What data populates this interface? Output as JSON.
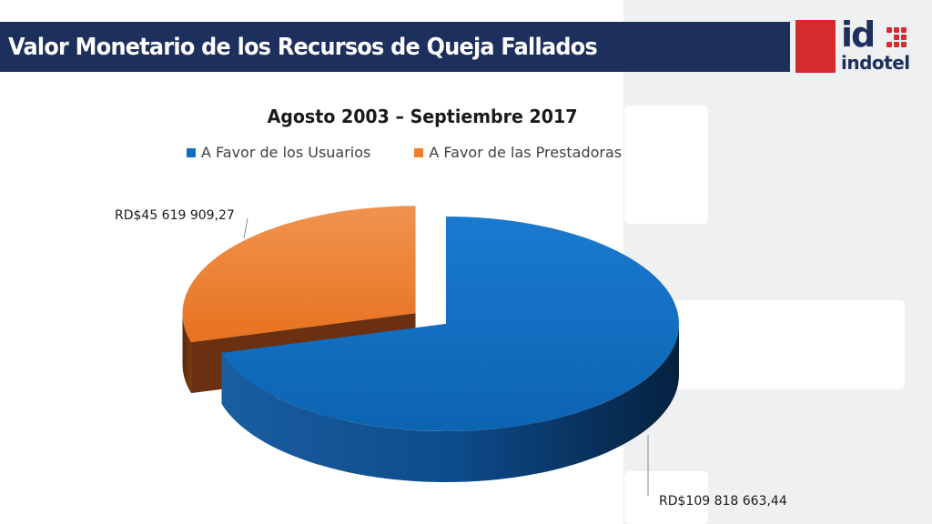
{
  "header": {
    "title": "Valor Monetario de los Recursos de Queja Fallados"
  },
  "logo": {
    "mark": "id",
    "word": "indotel",
    "color_red": "#d52b2f",
    "color_navy": "#1d2f5c"
  },
  "chart_data": {
    "type": "pie",
    "title": "Agosto 2003 – Septiembre 2017",
    "legend_position": "top",
    "slices": [
      {
        "name": "A Favor de los Usuarios",
        "value": 109818663.44,
        "label": "RD$109 818 663,44",
        "color": "#0f6fc0",
        "exploded": false
      },
      {
        "name": "A Favor de las Prestadoras",
        "value": 45619909.27,
        "label": "RD$45 619 909,27",
        "color": "#ef7d2c",
        "exploded": true
      }
    ]
  }
}
